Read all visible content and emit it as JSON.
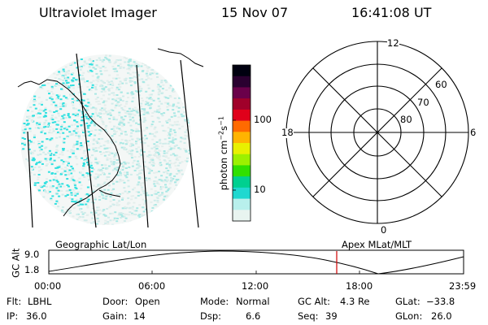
{
  "header": {
    "title": "Ultraviolet Imager",
    "date": "15 Nov 07",
    "time": "16:41:08 UT"
  },
  "colorbar": {
    "label": "photon cm",
    "label_sup1": "−2",
    "label_mid": "s",
    "label_sup2": "−1",
    "ticks": [
      {
        "label": "100",
        "value": 100
      },
      {
        "label": "10",
        "value": 10
      }
    ],
    "colors": [
      "#000010",
      "#2a0030",
      "#6a004a",
      "#a0002a",
      "#e0001a",
      "#ff6a00",
      "#ffb400",
      "#e8f000",
      "#9cf000",
      "#30e000",
      "#00d090",
      "#20d8d0",
      "#b8f0ec",
      "#e8f4f0"
    ]
  },
  "geo_panel": {
    "label": "Geographic Lat/Lon",
    "pixel_color": "#30e0e0"
  },
  "polar_plot": {
    "label": "Apex MLat/MLT",
    "lat_labels": [
      "60",
      "70",
      "80"
    ],
    "mlt_labels": {
      "top": "12",
      "bottom": "0",
      "left": "18",
      "right": "6"
    }
  },
  "altitude_timeline": {
    "ylabel": "GC Alt",
    "y_ticks": [
      "9.0",
      "1.8"
    ],
    "x_ticks": [
      "00:00",
      "06:00",
      "12:00",
      "18:00",
      "23:59"
    ],
    "current_time_marker_color": "#d00000"
  },
  "info": {
    "row1": [
      {
        "label": "Flt:",
        "value": "LBHL"
      },
      {
        "label": "Door:",
        "value": "Open"
      },
      {
        "label": "Mode:",
        "value": "Normal"
      },
      {
        "label": "GC Alt:",
        "value": "4.3 Re"
      },
      {
        "label": "GLat:",
        "value": "−33.8"
      }
    ],
    "row2": [
      {
        "label": "IP:",
        "value": "36.0"
      },
      {
        "label": "Gain:",
        "value": "14"
      },
      {
        "label": "Dsp:",
        "value": "6.6"
      },
      {
        "label": "Seq:",
        "value": "39"
      },
      {
        "label": "GLon:",
        "value": "26.0"
      }
    ]
  }
}
